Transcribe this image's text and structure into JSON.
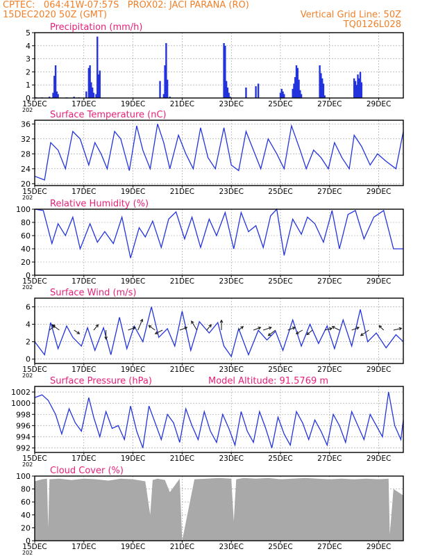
{
  "header": {
    "line1_left": "CPTEC:   064:41W-07:57S   PROX02: JACI PARANA (RO)",
    "line2_left": "15DEC2020 50Z (GMT)",
    "line2_right": "Vertical Grid Line: 50Z",
    "line3_right": "TQ0126L028"
  },
  "colors": {
    "header": "#f0802a",
    "panel_title": "#e8207a",
    "series": "#2233dd",
    "cloud": "#a9a9a9",
    "grid": "#999999"
  },
  "x_axis": {
    "tick_labels": [
      "15DEC",
      "17DEC",
      "19DEC",
      "21DEC",
      "23DEC",
      "25DEC",
      "27DEC",
      "29DEC"
    ],
    "tick_days": [
      0,
      2,
      4,
      6,
      8,
      10,
      12,
      14
    ],
    "range_days": [
      0,
      15
    ],
    "year_fragment": "202"
  },
  "chart_data": [
    {
      "type": "bar",
      "title": "Precipitation (mm/h)",
      "ylim": [
        0,
        5
      ],
      "yticks": [
        0,
        1,
        2,
        3,
        4,
        5
      ],
      "x_days": [
        0.05,
        0.3,
        0.6,
        0.75,
        0.8,
        0.85,
        0.9,
        0.95,
        1.3,
        1.6,
        1.8,
        2.1,
        2.2,
        2.25,
        2.3,
        2.35,
        2.4,
        2.5,
        2.55,
        2.6,
        2.65,
        5.1,
        5.25,
        5.3,
        5.35,
        5.4,
        5.5,
        7.7,
        7.75,
        7.8,
        7.85,
        7.9,
        7.95,
        8.6,
        9.0,
        9.1,
        10.0,
        10.05,
        10.1,
        10.15,
        10.5,
        10.55,
        10.6,
        10.65,
        10.7,
        10.75,
        10.8,
        10.85,
        11.6,
        11.65,
        11.7,
        11.75,
        11.8,
        13.0,
        13.05,
        13.1,
        13.15,
        13.2,
        13.25,
        13.3
      ],
      "values": [
        0.05,
        0.05,
        0.1,
        0.4,
        1.7,
        2.5,
        0.5,
        0.3,
        0.05,
        0.1,
        0.05,
        0.5,
        2.3,
        2.5,
        1.2,
        0.8,
        0.4,
        0.3,
        4.7,
        1.8,
        2.1,
        1.3,
        0.3,
        2.5,
        4.2,
        1.4,
        0.1,
        4.2,
        4.0,
        1.3,
        0.8,
        0.4,
        0.1,
        0.8,
        0.9,
        1.1,
        0.4,
        0.7,
        0.5,
        0.3,
        0.7,
        1.1,
        1.6,
        2.5,
        2.3,
        1.4,
        0.6,
        0.3,
        2.5,
        1.9,
        1.5,
        1.1,
        0.2,
        1.5,
        1.3,
        1.0,
        1.8,
        1.5,
        2.0,
        1.2
      ]
    },
    {
      "type": "line",
      "title": "Surface Temperature (nC)",
      "ylim": [
        19.5,
        37
      ],
      "yticks": [
        20,
        24,
        28,
        32,
        36
      ],
      "x_days": [
        0,
        0.4,
        0.65,
        0.95,
        1.25,
        1.55,
        1.85,
        2.2,
        2.45,
        2.7,
        2.95,
        3.25,
        3.5,
        3.85,
        4.15,
        4.4,
        4.7,
        5.0,
        5.25,
        5.5,
        5.85,
        6.15,
        6.45,
        6.75,
        7.05,
        7.35,
        7.7,
        8.0,
        8.3,
        8.6,
        8.9,
        9.2,
        9.5,
        9.85,
        10.15,
        10.45,
        10.8,
        11.05,
        11.35,
        11.65,
        11.95,
        12.2,
        12.5,
        12.8,
        13.0,
        13.3,
        13.65,
        13.95,
        14.3,
        14.7,
        15.0
      ],
      "values": [
        22,
        21,
        31,
        29,
        24,
        34,
        32,
        25,
        31,
        28,
        24,
        34,
        32,
        23.5,
        35.5,
        29,
        24,
        36,
        31,
        24,
        33,
        28,
        24,
        35,
        27,
        24,
        35,
        25,
        23.5,
        34,
        29,
        24,
        32,
        28,
        24,
        35.5,
        29,
        24,
        29,
        27,
        24,
        31,
        27,
        24,
        33,
        30,
        25,
        28,
        26,
        24,
        34
      ]
    },
    {
      "type": "line",
      "title": "Relative Humidity (%)",
      "ylim": [
        0,
        100
      ],
      "yticks": [
        0,
        20,
        40,
        60,
        80,
        100
      ],
      "x_days": [
        0,
        0.35,
        0.7,
        0.95,
        1.25,
        1.55,
        1.85,
        2.25,
        2.55,
        2.85,
        3.2,
        3.55,
        3.9,
        4.25,
        4.5,
        4.8,
        5.15,
        5.45,
        5.75,
        6.1,
        6.4,
        6.75,
        7.1,
        7.4,
        7.75,
        8.1,
        8.4,
        8.7,
        9.0,
        9.3,
        9.6,
        9.85,
        10.15,
        10.5,
        10.85,
        11.1,
        11.4,
        11.75,
        12.1,
        12.4,
        12.75,
        13.05,
        13.4,
        13.8,
        14.2,
        14.6,
        15.0
      ],
      "values": [
        100,
        98,
        48,
        78,
        60,
        88,
        40,
        78,
        50,
        66,
        48,
        88,
        26,
        72,
        58,
        82,
        42,
        85,
        96,
        55,
        88,
        42,
        85,
        60,
        95,
        40,
        95,
        66,
        75,
        42,
        90,
        100,
        30,
        85,
        62,
        88,
        78,
        50,
        98,
        40,
        92,
        98,
        55,
        88,
        98,
        40,
        40
      ]
    },
    {
      "type": "line",
      "title": "Surface Wind (m/s)",
      "ylim": [
        -0.5,
        7
      ],
      "yticks": [
        0,
        2,
        4,
        6
      ],
      "x_days": [
        0,
        0.4,
        0.65,
        0.95,
        1.3,
        1.55,
        1.9,
        2.15,
        2.45,
        2.8,
        3.1,
        3.45,
        3.75,
        4.05,
        4.4,
        4.75,
        5.05,
        5.4,
        5.7,
        6.0,
        6.35,
        6.7,
        7.1,
        7.45,
        7.7,
        8.0,
        8.3,
        8.7,
        9.1,
        9.45,
        9.8,
        10.1,
        10.5,
        10.85,
        11.2,
        11.55,
        11.9,
        12.2,
        12.55,
        12.9,
        13.25,
        13.55,
        13.9,
        14.3,
        14.7,
        15.0
      ],
      "values": [
        2,
        0.5,
        4.2,
        1.2,
        3.8,
        2.5,
        1.5,
        3.6,
        1.0,
        3.6,
        0.5,
        4.8,
        1.2,
        3.8,
        2.0,
        6.0,
        2.5,
        3.5,
        1.5,
        5.5,
        1.0,
        4.3,
        3.0,
        4.2,
        1.5,
        0.3,
        3.5,
        0.5,
        3.3,
        2.2,
        3.2,
        1.0,
        4.5,
        1.5,
        4.0,
        1.8,
        3.8,
        1.2,
        4.5,
        1.5,
        5.7,
        2.0,
        3.0,
        1.3,
        2.8,
        2.0
      ],
      "vectors": {
        "x_days": [
          0.6,
          1.0,
          1.6,
          2.4,
          2.9,
          3.8,
          4.2,
          4.9,
          5.2,
          5.9,
          6.6,
          7.0,
          7.6,
          8.3,
          8.9,
          9.3,
          9.8,
          10.3,
          10.9,
          11.3,
          11.8,
          12.4,
          12.9,
          13.6,
          14.2,
          14.6
        ],
        "dx": [
          0.6,
          -0.8,
          0.6,
          0.5,
          0.0,
          0.8,
          0.5,
          -0.7,
          -0.8,
          0.8,
          -0.6,
          0.5,
          0.0,
          0.5,
          0.8,
          0.9,
          -0.8,
          0.8,
          -0.7,
          -0.6,
          0.8,
          -0.8,
          0.8,
          -0.9,
          -0.5,
          0.9
        ],
        "dy": [
          -0.5,
          -0.6,
          0.4,
          -0.6,
          1.0,
          -0.3,
          -1.2,
          -0.5,
          0.4,
          -0.3,
          -1.0,
          -0.6,
          -1.1,
          -0.4,
          -0.3,
          -0.3,
          0.6,
          -0.3,
          0.4,
          0.5,
          -0.2,
          -0.4,
          -0.3,
          0.6,
          -0.5,
          -0.2
        ]
      }
    },
    {
      "type": "line",
      "title": "Surface Pressure (hPa)",
      "annotation": "Model Altitude: 91.5769 m",
      "ylim": [
        991.2,
        1003
      ],
      "yticks": [
        992,
        994,
        996,
        998,
        1000,
        1002
      ],
      "x_days": [
        0,
        0.3,
        0.55,
        0.85,
        1.1,
        1.4,
        1.65,
        1.9,
        2.2,
        2.4,
        2.65,
        2.9,
        3.15,
        3.4,
        3.65,
        3.9,
        4.15,
        4.4,
        4.65,
        4.9,
        5.15,
        5.4,
        5.65,
        5.9,
        6.15,
        6.4,
        6.65,
        6.9,
        7.15,
        7.4,
        7.65,
        7.9,
        8.15,
        8.4,
        8.65,
        8.9,
        9.15,
        9.4,
        9.65,
        9.9,
        10.15,
        10.4,
        10.65,
        10.9,
        11.15,
        11.4,
        11.65,
        11.9,
        12.15,
        12.4,
        12.65,
        12.9,
        13.15,
        13.4,
        13.65,
        13.9,
        14.15,
        14.4,
        14.65,
        14.9,
        15.0
      ],
      "values": [
        1001,
        1001.5,
        1000.5,
        998,
        994.5,
        999,
        996.5,
        995,
        1001,
        997.5,
        994,
        998.5,
        995.5,
        996,
        993.5,
        999.5,
        995,
        992,
        999.5,
        996.5,
        993.5,
        998,
        996.5,
        993,
        999,
        996,
        993.5,
        998.5,
        995,
        993,
        998,
        995.5,
        992.5,
        998.5,
        995,
        993,
        998.5,
        995.5,
        992,
        997.5,
        994.5,
        992.5,
        998.5,
        996.5,
        993.5,
        997,
        995,
        992.5,
        998,
        996,
        993,
        998.5,
        996,
        993.5,
        998,
        996,
        994,
        1002,
        996,
        993.5,
        997
      ]
    },
    {
      "type": "area",
      "title": "Cloud Cover (%)",
      "ylim": [
        0,
        100
      ],
      "yticks": [
        0,
        20,
        40,
        60,
        80,
        100
      ],
      "x_days": [
        0,
        0.3,
        0.5,
        0.55,
        0.6,
        1.0,
        1.5,
        2.0,
        2.5,
        3.0,
        3.5,
        4.0,
        4.5,
        4.7,
        4.8,
        5.0,
        5.3,
        5.5,
        5.9,
        6.0,
        6.5,
        7.0,
        7.5,
        8.0,
        8.1,
        8.2,
        8.5,
        9.0,
        9.5,
        10.0,
        10.5,
        11.0,
        11.5,
        12.0,
        12.5,
        13.0,
        13.5,
        14.0,
        14.4,
        14.45,
        14.6,
        15.0
      ],
      "values": [
        92,
        95,
        96,
        20,
        95,
        96,
        94,
        96,
        95,
        93,
        96,
        95,
        92,
        40,
        94,
        96,
        94,
        75,
        96,
        0,
        95,
        96,
        97,
        96,
        30,
        95,
        97,
        96,
        97,
        95,
        96,
        97,
        96,
        95,
        96,
        95,
        96,
        95,
        96,
        10,
        80,
        70
      ]
    }
  ]
}
